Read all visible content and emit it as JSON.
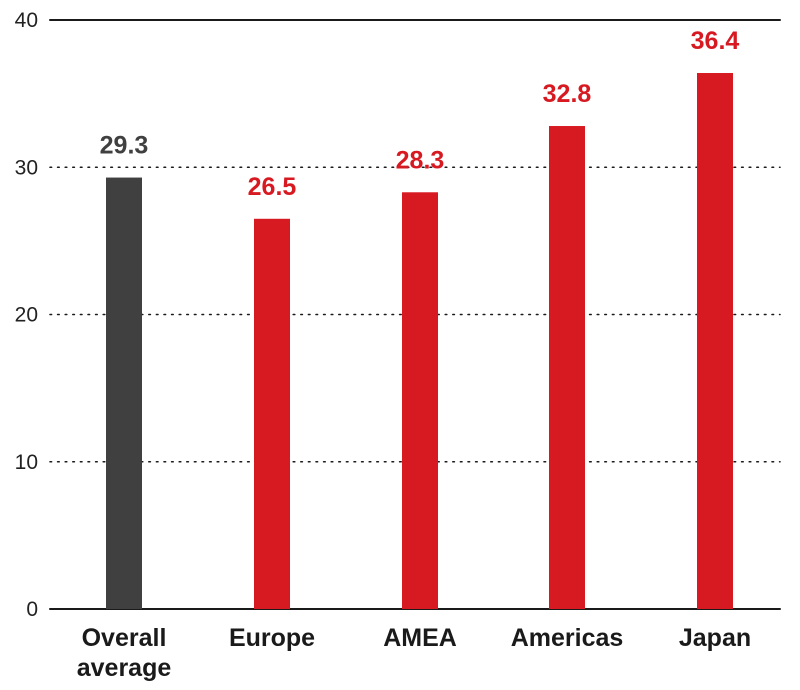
{
  "chart_data": {
    "type": "bar",
    "categories": [
      "Overall average",
      "Europe",
      "AMEA",
      "Americas",
      "Japan"
    ],
    "category_lines": [
      [
        "Overall",
        "average"
      ],
      [
        "Europe"
      ],
      [
        "AMEA"
      ],
      [
        "Americas"
      ],
      [
        "Japan"
      ]
    ],
    "values": [
      29.3,
      26.5,
      28.3,
      32.8,
      36.4
    ],
    "value_labels": [
      "29.3",
      "26.5",
      "28.3",
      "32.8",
      "36.4"
    ],
    "bar_colors": [
      "#404041",
      "#d71a21",
      "#d71a21",
      "#d71a21",
      "#d71a21"
    ],
    "value_label_colors": [
      "#404041",
      "#d71a21",
      "#d71a21",
      "#d71a21",
      "#d71a21"
    ],
    "ylim": [
      0,
      40
    ],
    "yticks": [
      0,
      10,
      20,
      30,
      40
    ],
    "ytick_labels": [
      "0",
      "10",
      "20",
      "30",
      "40"
    ],
    "grid": true,
    "title": "",
    "xlabel": "",
    "ylabel": ""
  }
}
